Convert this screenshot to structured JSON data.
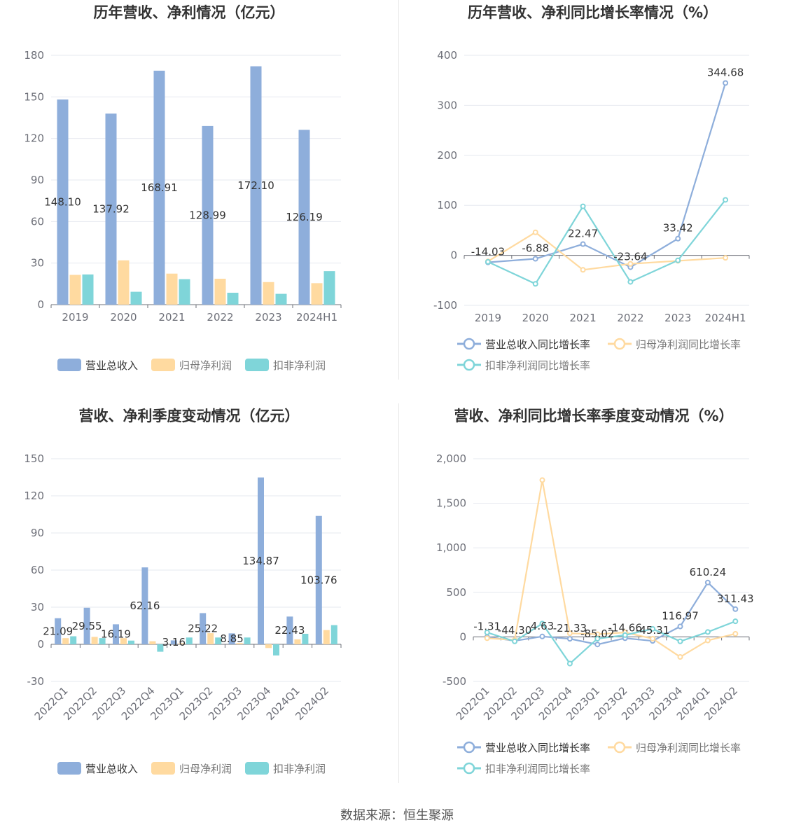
{
  "source_text": "数据来源：恒生聚源",
  "colors": {
    "revenue": "#8eaedb",
    "netprofit": "#ffdaa0",
    "deducted": "#7fd5d9",
    "grid": "#e6e8ef",
    "axis": "#6e7079"
  },
  "chart_data": [
    {
      "type": "bar",
      "title": "历年营收、净利情况（亿元）",
      "categories": [
        "2019",
        "2020",
        "2021",
        "2022",
        "2023",
        "2024H1"
      ],
      "ylim": [
        0,
        180
      ],
      "yticks": [
        0,
        30,
        60,
        90,
        120,
        150,
        180
      ],
      "series": [
        {
          "name": "营业总收入",
          "values": [
            148.1,
            137.92,
            168.91,
            128.99,
            172.1,
            126.19
          ],
          "labels": [
            "148.10",
            "137.92",
            "168.91",
            "128.99",
            "172.10",
            "126.19"
          ]
        },
        {
          "name": "归母净利润",
          "values": [
            21.5,
            32.0,
            22.4,
            18.7,
            16.3,
            15.5
          ]
        },
        {
          "name": "扣非净利润",
          "values": [
            21.8,
            9.3,
            18.4,
            8.6,
            7.8,
            24.2
          ]
        }
      ],
      "legend": "bottom"
    },
    {
      "type": "line",
      "title": "历年营收、净利同比增长率情况（%）",
      "categories": [
        "2019",
        "2020",
        "2021",
        "2022",
        "2023",
        "2024H1"
      ],
      "ylim": [
        -100,
        400
      ],
      "yticks": [
        -100,
        0,
        100,
        200,
        300,
        400
      ],
      "series": [
        {
          "name": "营业总收入同比增长率",
          "values": [
            -14.03,
            -6.88,
            22.47,
            -23.64,
            33.42,
            344.68
          ],
          "labels": [
            "-14.03",
            "-6.88",
            "22.47",
            "-23.64",
            "33.42",
            "344.68"
          ]
        },
        {
          "name": "归母净利润同比增长率",
          "values": [
            -12,
            46,
            -29,
            -17,
            -11,
            -5
          ]
        },
        {
          "name": "扣非净利润同比增长率",
          "values": [
            -13,
            -57,
            98,
            -53,
            -10,
            111
          ]
        }
      ],
      "legend": "bottom"
    },
    {
      "type": "bar",
      "title": "营收、净利季度变动情况（亿元）",
      "categories": [
        "2022Q1",
        "2022Q2",
        "2022Q3",
        "2022Q4",
        "2023Q1",
        "2023Q2",
        "2023Q3",
        "2023Q4",
        "2024Q1",
        "2024Q2"
      ],
      "ylim": [
        -30,
        150
      ],
      "yticks": [
        -30,
        0,
        30,
        60,
        90,
        120,
        150
      ],
      "series": [
        {
          "name": "营业总收入",
          "values": [
            21.09,
            29.55,
            16.19,
            62.16,
            3.16,
            25.22,
            8.85,
            134.87,
            22.43,
            103.76
          ],
          "labels": [
            "21.09",
            "29.55",
            "16.19",
            "62.16",
            "3.16",
            "25.22",
            "8.85",
            "134.87",
            "22.43",
            "103.76"
          ]
        },
        {
          "name": "归母净利润",
          "values": [
            5.0,
            6.0,
            5.0,
            2.5,
            0.8,
            9.0,
            1.0,
            -3.0,
            4.0,
            11.5
          ]
        },
        {
          "name": "扣非净利润",
          "values": [
            6.5,
            5.0,
            3.0,
            -6.0,
            5.5,
            5.5,
            5.5,
            -9.0,
            8.5,
            15.5
          ]
        }
      ],
      "legend": "bottom"
    },
    {
      "type": "line",
      "title": "营收、净利同比增长率季度变动情况（%）",
      "categories": [
        "2022Q1",
        "2022Q2",
        "2022Q3",
        "2022Q4",
        "2023Q1",
        "2023Q2",
        "2023Q3",
        "2023Q4",
        "2024Q1",
        "2024Q2"
      ],
      "ylim": [
        -500,
        2000
      ],
      "yticks": [
        -500,
        0,
        500,
        1000,
        1500,
        2000
      ],
      "ytick_labels": [
        "-500",
        "0",
        "500",
        "1,000",
        "1,500",
        "2,000"
      ],
      "series": [
        {
          "name": "营业总收入同比增长率",
          "values": [
            -1.31,
            -44.3,
            4.63,
            -21.33,
            -85.02,
            -14.66,
            -45.31,
            116.97,
            610.24,
            311.43
          ],
          "labels": [
            "-1.31",
            "-44.30",
            "4.63",
            "-21.33",
            "-85.02",
            "-14.66",
            "-45.31",
            "116.97",
            "610.24",
            "311.43"
          ]
        },
        {
          "name": "归母净利润同比增长率",
          "values": [
            -15,
            -35,
            1760,
            40,
            30,
            50,
            -20,
            -225,
            -40,
            35
          ]
        },
        {
          "name": "扣非净利润同比增长率",
          "values": [
            50,
            -50,
            150,
            -300,
            -20,
            20,
            90,
            -50,
            55,
            175
          ]
        }
      ],
      "legend": "bottom"
    }
  ]
}
